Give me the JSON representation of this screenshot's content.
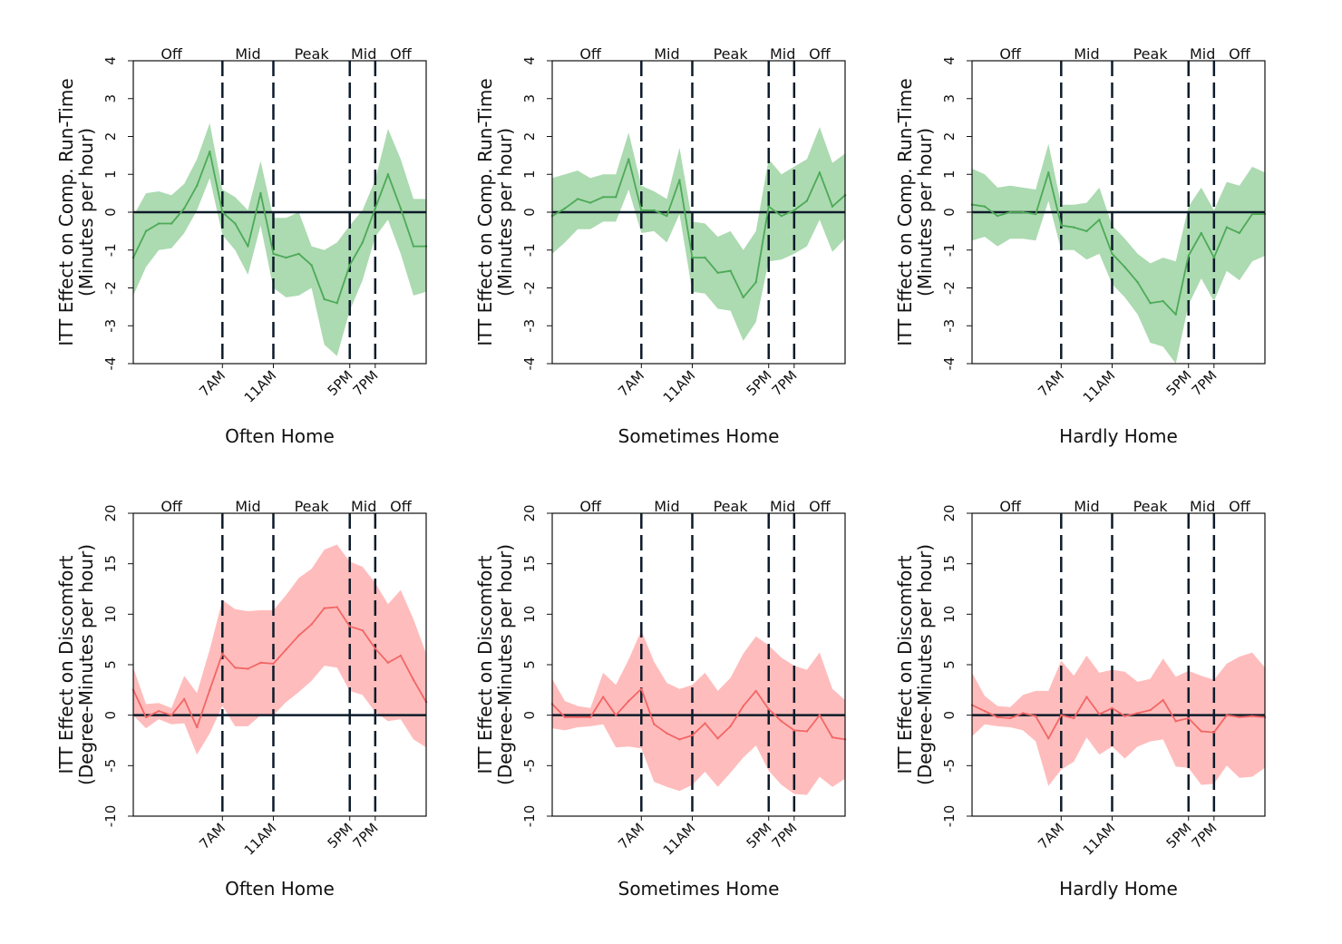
{
  "figure": {
    "colors": {
      "runtime_line": "#4daa57",
      "runtime_band": "#a8d8ad",
      "discomfort_line": "#f26666",
      "discomfort_band": "#ffb8b8",
      "axis": "#0d1b2a"
    }
  },
  "chart_data": [
    {
      "type": "line",
      "title": "",
      "xlabel": "Often Home",
      "ylabel": "ITT Effect on Comp. Run-Time",
      "ylabel2": "(Minutes per hour)",
      "ylim": [
        -4,
        4
      ],
      "yticks": [
        -4,
        -3,
        -2,
        -1,
        0,
        1,
        2,
        3,
        4
      ],
      "xlim": [
        0,
        23
      ],
      "x_tick_labels": [
        {
          "x": 7,
          "label": "7AM"
        },
        {
          "x": 11,
          "label": "11AM"
        },
        {
          "x": 17,
          "label": "5PM"
        },
        {
          "x": 19,
          "label": "7PM"
        }
      ],
      "period_labels": [
        {
          "x": 3,
          "label": "Off"
        },
        {
          "x": 9,
          "label": "Mid"
        },
        {
          "x": 14,
          "label": "Peak"
        },
        {
          "x": 18.1,
          "label": "Mid"
        },
        {
          "x": 21,
          "label": "Off"
        }
      ],
      "vlines": [
        7,
        11,
        17,
        19
      ],
      "reference_line": 0,
      "grid": false,
      "series": [
        {
          "values": [
            -1.2,
            -0.5,
            -0.3,
            -0.3,
            0.1,
            0.7,
            1.6,
            0.0,
            -0.3,
            -0.9,
            0.5,
            -1.1,
            -1.2,
            -1.1,
            -1.4,
            -2.3,
            -2.4,
            -1.4,
            -0.8,
            0.1,
            1.0,
            0.1,
            -0.9,
            -0.9
          ]
        }
      ],
      "ci_upper": [
        -0.1,
        0.5,
        0.55,
        0.45,
        0.75,
        1.4,
        2.35,
        0.6,
        0.4,
        0.05,
        1.35,
        -0.15,
        -0.15,
        0.0,
        -0.9,
        -1.0,
        -0.8,
        -0.35,
        0.05,
        0.85,
        2.2,
        1.4,
        0.35,
        0.35
      ],
      "ci_lower": [
        -2.2,
        -1.45,
        -1.0,
        -0.95,
        -0.55,
        0.05,
        0.9,
        -0.6,
        -1.0,
        -1.65,
        -0.35,
        -2.0,
        -2.25,
        -2.2,
        -2.0,
        -3.5,
        -3.8,
        -2.6,
        -1.8,
        -0.65,
        -0.2,
        -1.1,
        -2.2,
        -2.1
      ]
    },
    {
      "type": "line",
      "title": "",
      "xlabel": "Sometimes Home",
      "ylabel": "ITT Effect on Comp. Run-Time",
      "ylabel2": "(Minutes per hour)",
      "ylim": [
        -4,
        4
      ],
      "yticks": [
        -4,
        -3,
        -2,
        -1,
        0,
        1,
        2,
        3,
        4
      ],
      "xlim": [
        0,
        23
      ],
      "x_tick_labels": [
        {
          "x": 7,
          "label": "7AM"
        },
        {
          "x": 11,
          "label": "11AM"
        },
        {
          "x": 17,
          "label": "5PM"
        },
        {
          "x": 19,
          "label": "7PM"
        }
      ],
      "period_labels": [
        {
          "x": 3,
          "label": "Off"
        },
        {
          "x": 9,
          "label": "Mid"
        },
        {
          "x": 14,
          "label": "Peak"
        },
        {
          "x": 18.1,
          "label": "Mid"
        },
        {
          "x": 21,
          "label": "Off"
        }
      ],
      "vlines": [
        7,
        11,
        17,
        19
      ],
      "reference_line": 0,
      "grid": false,
      "series": [
        {
          "values": [
            -0.1,
            0.1,
            0.35,
            0.25,
            0.4,
            0.4,
            1.4,
            0.05,
            0.05,
            -0.1,
            0.85,
            -1.2,
            -1.2,
            -1.6,
            -1.55,
            -2.25,
            -1.85,
            0.15,
            -0.1,
            0.05,
            0.3,
            1.05,
            0.15,
            0.45
          ]
        }
      ],
      "ci_upper": [
        0.9,
        1.0,
        1.1,
        0.9,
        1.0,
        1.0,
        2.1,
        0.7,
        0.55,
        0.35,
        1.7,
        -0.25,
        -0.3,
        -0.65,
        -0.5,
        -1.0,
        -0.5,
        1.4,
        1.0,
        1.2,
        1.4,
        2.25,
        1.3,
        1.55
      ],
      "ci_lower": [
        -1.1,
        -0.8,
        -0.45,
        -0.45,
        -0.25,
        -0.25,
        0.6,
        -0.55,
        -0.5,
        -0.8,
        -0.05,
        -2.1,
        -2.15,
        -2.55,
        -2.6,
        -3.4,
        -2.9,
        -1.3,
        -1.25,
        -1.1,
        -0.9,
        -0.2,
        -1.05,
        -0.7
      ]
    },
    {
      "type": "line",
      "title": "",
      "xlabel": "Hardly Home",
      "ylabel": "ITT Effect on Comp. Run-Time",
      "ylabel2": "(Minutes per hour)",
      "ylim": [
        -4,
        4
      ],
      "yticks": [
        -4,
        -3,
        -2,
        -1,
        0,
        1,
        2,
        3,
        4
      ],
      "xlim": [
        0,
        23
      ],
      "x_tick_labels": [
        {
          "x": 7,
          "label": "7AM"
        },
        {
          "x": 11,
          "label": "11AM"
        },
        {
          "x": 17,
          "label": "5PM"
        },
        {
          "x": 19,
          "label": "7PM"
        }
      ],
      "period_labels": [
        {
          "x": 3,
          "label": "Off"
        },
        {
          "x": 9,
          "label": "Mid"
        },
        {
          "x": 14,
          "label": "Peak"
        },
        {
          "x": 18.1,
          "label": "Mid"
        },
        {
          "x": 21,
          "label": "Off"
        }
      ],
      "vlines": [
        7,
        11,
        17,
        19
      ],
      "reference_line": 0,
      "grid": false,
      "series": [
        {
          "values": [
            0.2,
            0.15,
            -0.1,
            0.0,
            0.0,
            -0.05,
            1.05,
            -0.35,
            -0.4,
            -0.5,
            -0.2,
            -1.1,
            -1.45,
            -1.85,
            -2.4,
            -2.35,
            -2.7,
            -1.15,
            -0.55,
            -1.2,
            -0.4,
            -0.55,
            -0.05,
            -0.05
          ]
        }
      ],
      "ci_upper": [
        1.15,
        1.0,
        0.65,
        0.7,
        0.65,
        0.6,
        1.8,
        0.2,
        0.2,
        0.25,
        0.65,
        -0.35,
        -0.7,
        -1.1,
        -1.35,
        -1.2,
        -1.3,
        0.15,
        0.65,
        0.05,
        0.8,
        0.7,
        1.2,
        1.05
      ],
      "ci_lower": [
        -0.75,
        -0.65,
        -0.9,
        -0.7,
        -0.7,
        -0.75,
        0.3,
        -1.0,
        -1.0,
        -1.25,
        -1.1,
        -1.9,
        -2.25,
        -2.7,
        -3.45,
        -3.55,
        -4.0,
        -2.45,
        -1.75,
        -2.35,
        -1.55,
        -1.8,
        -1.3,
        -1.15
      ]
    },
    {
      "type": "line",
      "title": "",
      "xlabel": "Often Home",
      "ylabel": "ITT Effect on Discomfort",
      "ylabel2": "(Degree-Minutes per hour)",
      "ylim": [
        -10,
        20
      ],
      "yticks": [
        -10,
        -5,
        0,
        5,
        10,
        15,
        20
      ],
      "xlim": [
        0,
        23
      ],
      "x_tick_labels": [
        {
          "x": 7,
          "label": "7AM"
        },
        {
          "x": 11,
          "label": "11AM"
        },
        {
          "x": 17,
          "label": "5PM"
        },
        {
          "x": 19,
          "label": "7PM"
        }
      ],
      "period_labels": [
        {
          "x": 3,
          "label": "Off"
        },
        {
          "x": 9,
          "label": "Mid"
        },
        {
          "x": 14,
          "label": "Peak"
        },
        {
          "x": 18.1,
          "label": "Mid"
        },
        {
          "x": 21,
          "label": "Off"
        }
      ],
      "vlines": [
        7,
        11,
        17,
        19
      ],
      "reference_line": 0,
      "grid": false,
      "series": [
        {
          "values": [
            2.5,
            -0.2,
            0.4,
            0.0,
            1.6,
            -1.2,
            2.5,
            6.1,
            4.7,
            4.6,
            5.2,
            5.1,
            6.5,
            7.9,
            9.0,
            10.6,
            10.7,
            8.8,
            8.4,
            6.6,
            5.2,
            5.9,
            3.5,
            1.3
          ]
        }
      ],
      "ci_upper": [
        4.7,
        1.1,
        1.2,
        0.7,
        3.9,
        2.2,
        6.5,
        11.4,
        10.5,
        10.3,
        10.4,
        10.4,
        11.9,
        13.6,
        14.5,
        16.4,
        16.9,
        15.2,
        14.7,
        13.1,
        11.0,
        12.4,
        9.5,
        6.1
      ],
      "ci_lower": [
        0.0,
        -1.3,
        -0.4,
        -0.9,
        -0.8,
        -3.9,
        -1.8,
        0.9,
        -1.1,
        -1.1,
        0.0,
        0.0,
        1.3,
        2.3,
        3.4,
        4.9,
        4.7,
        2.4,
        2.0,
        0.3,
        -0.6,
        -0.4,
        -2.4,
        -3.2
      ]
    },
    {
      "type": "line",
      "title": "",
      "xlabel": "Sometimes Home",
      "ylabel": "ITT Effect on Discomfort",
      "ylabel2": "(Degree-Minutes per hour)",
      "ylim": [
        -10,
        20
      ],
      "yticks": [
        -10,
        -5,
        0,
        5,
        10,
        15,
        20
      ],
      "xlim": [
        0,
        23
      ],
      "x_tick_labels": [
        {
          "x": 7,
          "label": "7AM"
        },
        {
          "x": 11,
          "label": "11AM"
        },
        {
          "x": 17,
          "label": "5PM"
        },
        {
          "x": 19,
          "label": "7PM"
        }
      ],
      "period_labels": [
        {
          "x": 3,
          "label": "Off"
        },
        {
          "x": 9,
          "label": "Mid"
        },
        {
          "x": 14,
          "label": "Peak"
        },
        {
          "x": 18.1,
          "label": "Mid"
        },
        {
          "x": 21,
          "label": "Off"
        }
      ],
      "vlines": [
        7,
        11,
        17,
        19
      ],
      "reference_line": 0,
      "grid": false,
      "series": [
        {
          "values": [
            1.1,
            -0.2,
            -0.2,
            -0.2,
            1.8,
            0.0,
            1.4,
            2.6,
            -0.9,
            -1.8,
            -2.4,
            -2.0,
            -0.8,
            -2.3,
            -1.1,
            0.9,
            2.4,
            0.6,
            -0.6,
            -1.5,
            -1.6,
            0.0,
            -2.2,
            -2.4
          ]
        }
      ],
      "ci_upper": [
        3.6,
        1.4,
        0.9,
        0.7,
        4.2,
        3.0,
        5.5,
        8.4,
        5.3,
        3.2,
        2.6,
        3.0,
        4.2,
        2.4,
        3.7,
        6.1,
        7.8,
        6.9,
        5.7,
        4.9,
        4.5,
        6.2,
        2.6,
        1.5
      ],
      "ci_lower": [
        -1.3,
        -1.5,
        -1.2,
        -1.1,
        -0.9,
        -3.2,
        -3.1,
        -3.3,
        -6.6,
        -7.1,
        -7.5,
        -6.9,
        -5.6,
        -7.1,
        -5.7,
        -4.2,
        -3.0,
        -5.5,
        -6.9,
        -7.8,
        -7.9,
        -6.1,
        -7.1,
        -6.3
      ]
    },
    {
      "type": "line",
      "title": "",
      "xlabel": "Hardly Home",
      "ylabel": "ITT Effect on Discomfort",
      "ylabel2": "(Degree-Minutes per hour)",
      "ylim": [
        -10,
        20
      ],
      "yticks": [
        -10,
        -5,
        0,
        5,
        10,
        15,
        20
      ],
      "xlim": [
        0,
        23
      ],
      "x_tick_labels": [
        {
          "x": 7,
          "label": "7AM"
        },
        {
          "x": 11,
          "label": "11AM"
        },
        {
          "x": 17,
          "label": "5PM"
        },
        {
          "x": 19,
          "label": "7PM"
        }
      ],
      "period_labels": [
        {
          "x": 3,
          "label": "Off"
        },
        {
          "x": 9,
          "label": "Mid"
        },
        {
          "x": 14,
          "label": "Peak"
        },
        {
          "x": 18.1,
          "label": "Mid"
        },
        {
          "x": 21,
          "label": "Off"
        }
      ],
      "vlines": [
        7,
        11,
        17,
        19
      ],
      "reference_line": 0,
      "grid": false,
      "series": [
        {
          "values": [
            1.0,
            0.4,
            -0.2,
            -0.3,
            0.2,
            -0.1,
            -2.3,
            0.0,
            -0.3,
            1.8,
            0.1,
            0.7,
            -0.1,
            0.2,
            0.5,
            1.5,
            -0.6,
            -0.3,
            -1.6,
            -1.7,
            0.0,
            -0.2,
            -0.1,
            -0.2
          ]
        }
      ],
      "ci_upper": [
        4.2,
        1.9,
        0.9,
        0.8,
        2.0,
        2.4,
        2.4,
        5.4,
        3.9,
        5.9,
        4.2,
        4.5,
        4.3,
        3.3,
        3.6,
        5.6,
        3.8,
        4.4,
        3.9,
        3.5,
        5.1,
        5.8,
        6.2,
        4.7
      ],
      "ci_lower": [
        -2.1,
        -0.9,
        -1.1,
        -1.2,
        -1.5,
        -2.6,
        -7.0,
        -5.4,
        -4.6,
        -2.2,
        -3.9,
        -3.1,
        -4.3,
        -3.1,
        -2.6,
        -2.4,
        -5.1,
        -5.2,
        -6.9,
        -6.8,
        -5.0,
        -6.2,
        -6.1,
        -5.2
      ]
    }
  ]
}
